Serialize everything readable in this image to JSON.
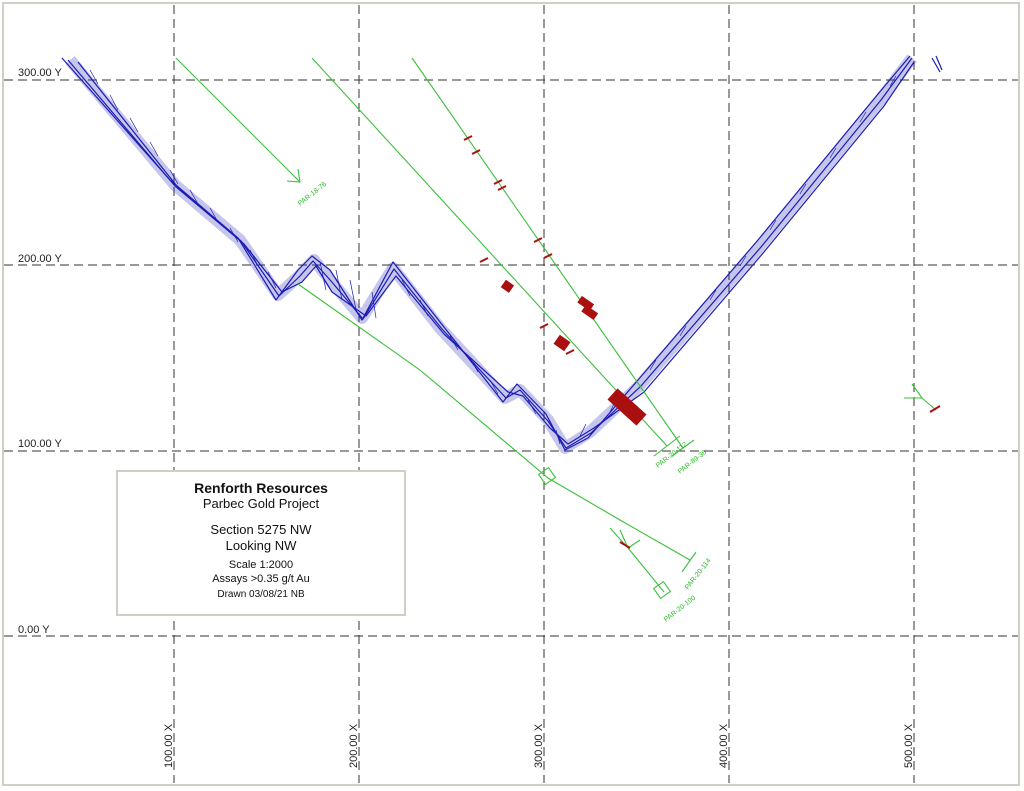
{
  "grid": {
    "y_labels": [
      "300.00 Y",
      "200.00 Y",
      "100.00 Y",
      "0.00 Y"
    ],
    "x_labels": [
      "100.00 X",
      "200.00 X",
      "300.00 X",
      "400.00 X",
      "500.00 X"
    ]
  },
  "drill_holes": [
    {
      "id": "PAR-18-76"
    },
    {
      "id": "PAR-20-112"
    },
    {
      "id": "PAR-89-36"
    },
    {
      "id": "PAR-20-114"
    },
    {
      "id": "PAR-20-100"
    }
  ],
  "title_block": {
    "company": "Renforth Resources",
    "project": "Parbec Gold Project",
    "section": "Section 5275 NW",
    "looking": "Looking NW",
    "scale": "Scale 1:2000",
    "assays": "Assays >0.35 g/t Au",
    "drawn": "Drawn 03/08/21 NB"
  },
  "colors": {
    "grid": "#333333",
    "topography": "#1c1cb4",
    "drill_trace": "#3cbf3c",
    "assay_intercept": "#aa1010",
    "frame": "#cfcfc6"
  }
}
